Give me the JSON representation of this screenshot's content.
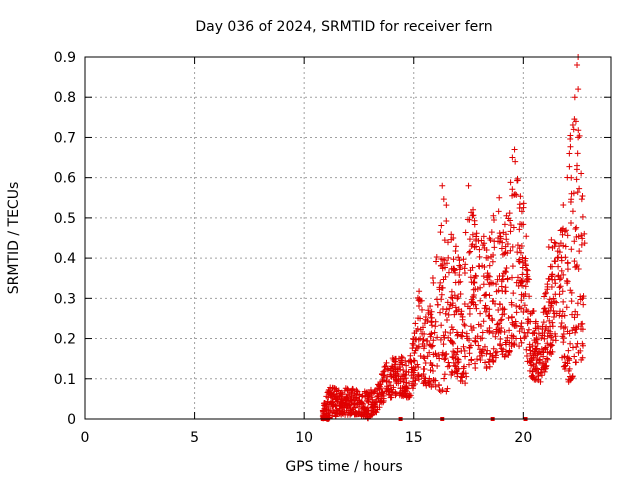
{
  "chart_data": {
    "type": "scatter",
    "title": "Day 036 of 2024, SRMTID for receiver fern",
    "xlabel": "GPS time / hours",
    "ylabel": "SRMTID / TECUs",
    "xlim": [
      0,
      24
    ],
    "ylim": [
      0,
      0.9
    ],
    "x_ticks": [
      0,
      5,
      10,
      15,
      20
    ],
    "x_tick_labels": [
      "0",
      "5",
      "10",
      "15",
      "20"
    ],
    "y_ticks": [
      0,
      0.1,
      0.2,
      0.3,
      0.4,
      0.5,
      0.6,
      0.7,
      0.8,
      0.9
    ],
    "y_tick_labels": [
      "0",
      "0.1",
      "0.2",
      "0.3",
      "0.4",
      "0.5",
      "0.6",
      "0.7",
      "0.8",
      "0.9"
    ],
    "grid": true,
    "marker": "+",
    "color": "#e00000",
    "envelope": [
      {
        "x": 10.85,
        "lo": 0.0,
        "hi": 0.03
      },
      {
        "x": 11.2,
        "lo": 0.0,
        "hi": 0.09
      },
      {
        "x": 11.6,
        "lo": 0.01,
        "hi": 0.07
      },
      {
        "x": 12.0,
        "lo": 0.01,
        "hi": 0.08
      },
      {
        "x": 12.5,
        "lo": 0.01,
        "hi": 0.07
      },
      {
        "x": 13.0,
        "lo": 0.0,
        "hi": 0.07
      },
      {
        "x": 13.4,
        "lo": 0.02,
        "hi": 0.09
      },
      {
        "x": 13.8,
        "lo": 0.05,
        "hi": 0.15
      },
      {
        "x": 14.3,
        "lo": 0.06,
        "hi": 0.16
      },
      {
        "x": 14.8,
        "lo": 0.05,
        "hi": 0.15
      },
      {
        "x": 15.2,
        "lo": 0.1,
        "hi": 0.33
      },
      {
        "x": 15.6,
        "lo": 0.08,
        "hi": 0.25
      },
      {
        "x": 16.0,
        "lo": 0.08,
        "hi": 0.4
      },
      {
        "x": 16.4,
        "lo": 0.05,
        "hi": 0.58
      },
      {
        "x": 16.8,
        "lo": 0.12,
        "hi": 0.45
      },
      {
        "x": 17.2,
        "lo": 0.08,
        "hi": 0.42
      },
      {
        "x": 17.6,
        "lo": 0.1,
        "hi": 0.58
      },
      {
        "x": 18.0,
        "lo": 0.15,
        "hi": 0.45
      },
      {
        "x": 18.4,
        "lo": 0.12,
        "hi": 0.46
      },
      {
        "x": 18.8,
        "lo": 0.15,
        "hi": 0.55
      },
      {
        "x": 19.2,
        "lo": 0.15,
        "hi": 0.5
      },
      {
        "x": 19.6,
        "lo": 0.18,
        "hi": 0.67
      },
      {
        "x": 20.0,
        "lo": 0.18,
        "hi": 0.55
      },
      {
        "x": 20.4,
        "lo": 0.1,
        "hi": 0.3
      },
      {
        "x": 20.8,
        "lo": 0.09,
        "hi": 0.22
      },
      {
        "x": 21.2,
        "lo": 0.15,
        "hi": 0.45
      },
      {
        "x": 21.6,
        "lo": 0.2,
        "hi": 0.45
      },
      {
        "x": 22.0,
        "lo": 0.08,
        "hi": 0.6
      },
      {
        "x": 22.4,
        "lo": 0.12,
        "hi": 0.9
      },
      {
        "x": 22.8,
        "lo": 0.15,
        "hi": 0.45
      }
    ],
    "outliers": [
      {
        "x": 22.1,
        "y": 0.66
      },
      {
        "x": 22.2,
        "y": 0.56
      },
      {
        "x": 22.3,
        "y": 0.72
      },
      {
        "x": 22.35,
        "y": 0.8
      },
      {
        "x": 22.45,
        "y": 0.88
      },
      {
        "x": 22.5,
        "y": 0.9
      },
      {
        "x": 22.5,
        "y": 0.82
      },
      {
        "x": 22.4,
        "y": 0.74
      },
      {
        "x": 22.45,
        "y": 0.63
      },
      {
        "x": 19.5,
        "y": 0.65
      },
      {
        "x": 19.6,
        "y": 0.67
      },
      {
        "x": 16.3,
        "y": 0.58
      },
      {
        "x": 17.5,
        "y": 0.58
      },
      {
        "x": 18.9,
        "y": 0.55
      }
    ],
    "baseline_marks": [
      {
        "x": 10.85,
        "y": 0.0
      },
      {
        "x": 11.0,
        "y": 0.0
      },
      {
        "x": 14.4,
        "y": 0.0
      },
      {
        "x": 16.3,
        "y": 0.0
      },
      {
        "x": 18.6,
        "y": 0.0
      },
      {
        "x": 20.1,
        "y": 0.0
      }
    ]
  }
}
